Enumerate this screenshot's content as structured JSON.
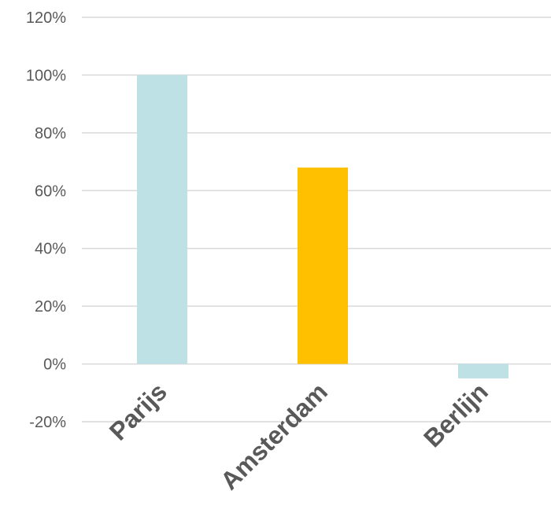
{
  "chart_data": {
    "type": "bar",
    "categories": [
      "Parijs",
      "Amsterdam",
      "Berlijn"
    ],
    "values": [
      100,
      68,
      -5
    ],
    "value_unit": "%",
    "bar_colors": [
      "#bde1e4",
      "#ffc000",
      "#bde1e4"
    ],
    "ylim": [
      -20,
      120
    ],
    "y_ticks": [
      "-20%",
      "0%",
      "20%",
      "40%",
      "60%",
      "80%",
      "100%",
      "120%"
    ],
    "grid": true,
    "legend": "none",
    "title": "",
    "xlabel": "",
    "ylabel": ""
  },
  "colors": {
    "grid": "#d9d9d9",
    "text": "#595959",
    "background": "#ffffff"
  }
}
